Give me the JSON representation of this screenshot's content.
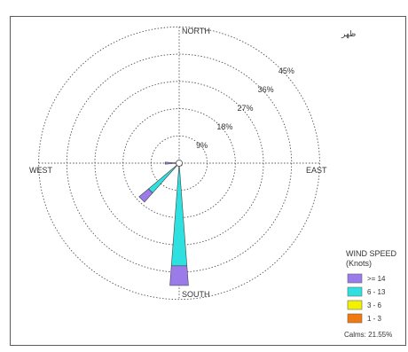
{
  "chart_data": {
    "type": "wind-rose",
    "title": "ظهر",
    "directions": {
      "north": "NORTH",
      "south": "SOUTH",
      "east": "EAST",
      "west": "WEST"
    },
    "rings": [
      {
        "value": 9,
        "label": "9%"
      },
      {
        "value": 18,
        "label": "18%"
      },
      {
        "value": 27,
        "label": "27%"
      },
      {
        "value": 36,
        "label": "36%"
      },
      {
        "value": 45,
        "label": "45%"
      }
    ],
    "legend": {
      "title_line1": "WIND SPEED",
      "title_line2": "(Knots)",
      "items": [
        {
          "label": ">= 14",
          "color": "#9b7bea"
        },
        {
          "label": "6 - 13",
          "color": "#2fe0e0"
        },
        {
          "label": "3 - 6",
          "color": "#f2f200"
        },
        {
          "label": "1 - 3",
          "color": "#f07a10"
        }
      ],
      "calms": "Calms: 21.55%"
    },
    "series": [
      {
        "name": "1 - 3",
        "color": "#f07a10",
        "values": [
          0,
          0,
          0,
          0,
          0,
          0,
          0,
          0,
          0,
          0,
          0,
          0,
          0,
          0,
          0,
          0
        ]
      },
      {
        "name": "3 - 6",
        "color": "#f2f200",
        "values": [
          0,
          0,
          0,
          0,
          0,
          0,
          0,
          0,
          0,
          0,
          0,
          0,
          0,
          0,
          0,
          0
        ]
      },
      {
        "name": "6 - 13",
        "color": "#2fe0e0",
        "values": [
          0,
          0,
          0,
          0,
          0,
          1,
          1.2,
          0,
          34,
          0,
          13,
          0,
          1.5,
          0,
          0,
          0
        ]
      },
      {
        "name": ">= 14",
        "color": "#9b7bea",
        "values": [
          0,
          0,
          0,
          0,
          0,
          0,
          0,
          0,
          6.5,
          0,
          4,
          0,
          3,
          0,
          0,
          0
        ]
      }
    ],
    "direction_angles": [
      0,
      22.5,
      45,
      67.5,
      90,
      112.5,
      135,
      157.5,
      180,
      202.5,
      225,
      247.5,
      270,
      292.5,
      315,
      337.5
    ]
  }
}
